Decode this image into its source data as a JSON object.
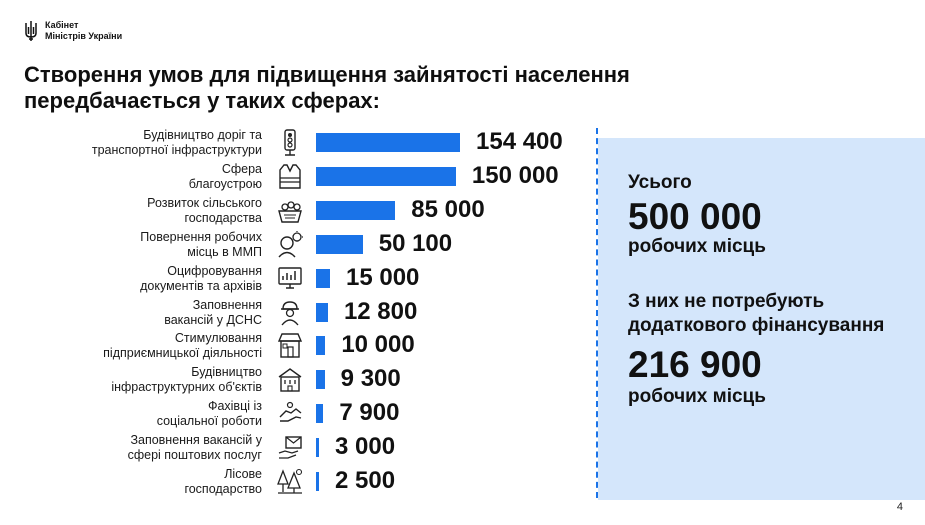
{
  "header": {
    "logo_line1": "Кабінет",
    "logo_line2": "Міністрів України",
    "title_line1": "Створення умов для підвищення зайнятості населення",
    "title_line2": "передбачається у таких сферах:"
  },
  "chart_data": {
    "type": "bar",
    "orientation": "horizontal",
    "categories": [
      "Будівництво доріг та транспортної інфраструктури",
      "Сфера благоустрою",
      "Розвиток сільського господарства",
      "Повернення робочих місць в ММП",
      "Оцифровування документів та архівів",
      "Заповнення вакансій у ДСНС",
      "Стимулювання підприємницької діяльності",
      "Будівництво інфраструктурних об'єктів",
      "Фахівці із соціальної роботи",
      "Заповнення вакансій у сфері поштових послуг",
      "Лісове господарство"
    ],
    "values": [
      154400,
      150000,
      85000,
      50100,
      15000,
      12800,
      10000,
      9300,
      7900,
      3000,
      2500
    ],
    "bar_color": "#1a73e8",
    "grid": false
  },
  "rows": [
    {
      "label1": "Будівництво доріг та",
      "label2": "транспортної інфраструктури",
      "value_text": "154 400",
      "icon": "traffic-light-icon"
    },
    {
      "label1": "Сфера",
      "label2": "благоустрою",
      "value_text": "150 000",
      "icon": "safety-vest-icon"
    },
    {
      "label1": "Розвиток сільського",
      "label2": "господарства",
      "value_text": "85 000",
      "icon": "harvest-basket-icon"
    },
    {
      "label1": "Повернення робочих",
      "label2": "місць в ММП",
      "value_text": "50 100",
      "icon": "person-idea-icon"
    },
    {
      "label1": "Оцифровування",
      "label2": "документів та архівів",
      "value_text": "15 000",
      "icon": "monitor-chart-icon"
    },
    {
      "label1": "Заповнення",
      "label2": "вакансій у ДСНС",
      "value_text": "12 800",
      "icon": "firefighter-icon"
    },
    {
      "label1": "Стимулювання",
      "label2": "підприємницької діяльності",
      "value_text": "10 000",
      "icon": "shop-icon"
    },
    {
      "label1": "Будівництво",
      "label2": "інфраструктурних об'єктів",
      "value_text": "9 300",
      "icon": "building-icon"
    },
    {
      "label1": "Фахівці із",
      "label2": "соціальної роботи",
      "value_text": "7 900",
      "icon": "helping-hands-icon"
    },
    {
      "label1": "Заповнення вакансій у",
      "label2": "сфері поштових послуг",
      "value_text": "3 000",
      "icon": "mail-hand-icon"
    },
    {
      "label1": "Лісове",
      "label2": "господарство",
      "value_text": "2 500",
      "icon": "forest-icon"
    }
  ],
  "summary": {
    "total_label": "Усього",
    "total_value": "500 000",
    "total_unit": "робочих місць",
    "nofunding_label": "З них не потребують додаткового фінансування",
    "nofunding_value": "216 900",
    "nofunding_unit": "робочих місць",
    "bg_color": "#d4e6fb"
  },
  "page_number": "4"
}
